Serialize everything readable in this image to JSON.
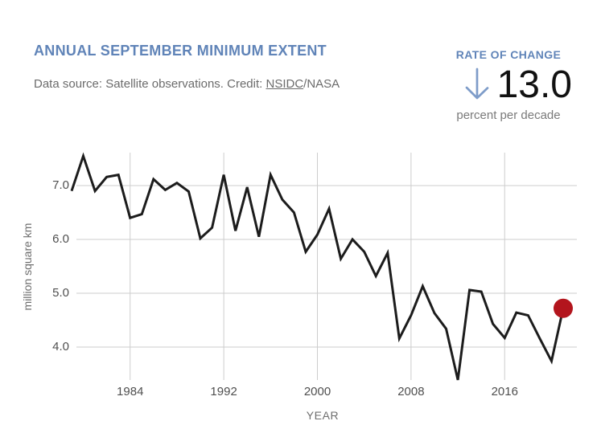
{
  "header": {
    "title": "ANNUAL SEPTEMBER MINIMUM EXTENT",
    "subtitle_prefix": "Data source: Satellite observations. Credit: ",
    "subtitle_link": "NSIDC",
    "subtitle_suffix": "/NASA"
  },
  "rate_of_change": {
    "label": "RATE OF CHANGE",
    "value": "13.0",
    "unit": "percent per decade",
    "arrow_icon": "down-arrow-icon",
    "accent_color": "#6084b8",
    "arrow_color": "#7e9cc9"
  },
  "chart_data": {
    "type": "line",
    "title": "ANNUAL SEPTEMBER MINIMUM EXTENT",
    "xlabel": "YEAR",
    "ylabel": "million square km",
    "x_ticks": [
      1984,
      1992,
      2000,
      2008,
      2016
    ],
    "y_ticks": [
      {
        "label": "7.0",
        "value": 7.0
      },
      {
        "label": "6.0",
        "value": 6.0
      },
      {
        "label": "5.0",
        "value": 5.0
      },
      {
        "label": "4.0",
        "value": 4.0
      }
    ],
    "xlim": [
      1979,
      2021
    ],
    "ylim": [
      3.2,
      7.8
    ],
    "grid": true,
    "line_color": "#1c1c1c",
    "gridline_color": "#cdcdcd",
    "last_point_marker_color": "#b3151d",
    "series": [
      {
        "name": "September minimum extent",
        "x": [
          1979,
          1980,
          1981,
          1982,
          1983,
          1984,
          1985,
          1986,
          1987,
          1988,
          1989,
          1990,
          1991,
          1992,
          1993,
          1994,
          1995,
          1996,
          1997,
          1998,
          1999,
          2000,
          2001,
          2002,
          2003,
          2004,
          2005,
          2006,
          2007,
          2008,
          2009,
          2010,
          2011,
          2012,
          2013,
          2014,
          2015,
          2016,
          2017,
          2018,
          2019,
          2020,
          2021
        ],
        "values": [
          6.9,
          7.55,
          6.9,
          7.16,
          7.2,
          6.4,
          6.47,
          7.12,
          6.92,
          7.05,
          6.89,
          6.02,
          6.22,
          7.2,
          6.16,
          6.97,
          6.05,
          7.2,
          6.74,
          6.5,
          5.77,
          6.09,
          6.57,
          5.64,
          6.0,
          5.77,
          5.32,
          5.75,
          4.16,
          4.59,
          5.13,
          4.63,
          4.34,
          3.39,
          5.06,
          5.03,
          4.43,
          4.17,
          4.64,
          4.59,
          4.16,
          3.74,
          4.72
        ]
      }
    ]
  }
}
